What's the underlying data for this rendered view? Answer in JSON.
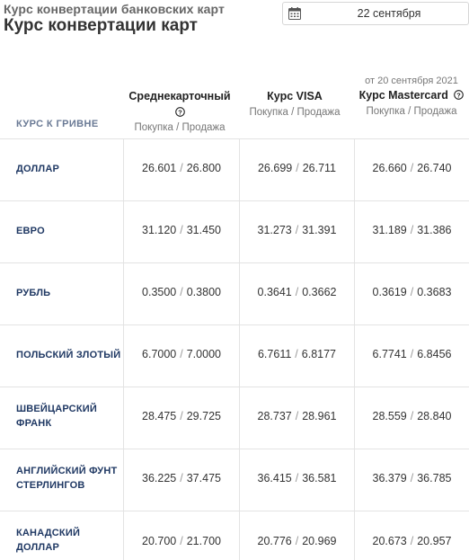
{
  "header": {
    "top_title": "Курс конвертации банковских карт",
    "main_title": "Курс конвертации карт",
    "date": "22 сентября"
  },
  "table": {
    "row_label_header": "КУРС К ГРИВНЕ",
    "as_of": "от 20 сентября 2021",
    "columns": [
      {
        "name": "Среднекарточный",
        "sub": "Покупка / Продажа"
      },
      {
        "name": "Курс VISA",
        "sub": "Покупка / Продажа"
      },
      {
        "name": "Курс Mastercard",
        "sub": "Покупка / Продажа"
      }
    ],
    "rows": [
      {
        "l1": "ДОЛЛАР",
        "l2": "",
        "c": [
          [
            "26.601",
            "26.800"
          ],
          [
            "26.699",
            "26.711"
          ],
          [
            "26.660",
            "26.740"
          ]
        ]
      },
      {
        "l1": "ЕВРО",
        "l2": "",
        "c": [
          [
            "31.120",
            "31.450"
          ],
          [
            "31.273",
            "31.391"
          ],
          [
            "31.189",
            "31.386"
          ]
        ]
      },
      {
        "l1": "РУБЛЬ",
        "l2": "",
        "c": [
          [
            "0.3500",
            "0.3800"
          ],
          [
            "0.3641",
            "0.3662"
          ],
          [
            "0.3619",
            "0.3683"
          ]
        ]
      },
      {
        "l1": "ПОЛЬСКИЙ ЗЛОТЫЙ",
        "l2": "",
        "c": [
          [
            "6.7000",
            "7.0000"
          ],
          [
            "6.7611",
            "6.8177"
          ],
          [
            "6.7741",
            "6.8456"
          ]
        ]
      },
      {
        "l1": "ШВЕЙЦАРСКИЙ",
        "l2": "ФРАНК",
        "c": [
          [
            "28.475",
            "29.725"
          ],
          [
            "28.737",
            "28.961"
          ],
          [
            "28.559",
            "28.840"
          ]
        ]
      },
      {
        "l1": "АНГЛИЙСКИЙ ФУНТ",
        "l2": "СТЕРЛИНГОВ",
        "c": [
          [
            "36.225",
            "37.475"
          ],
          [
            "36.415",
            "36.581"
          ],
          [
            "36.379",
            "36.785"
          ]
        ]
      },
      {
        "l1": "КАНАДСКИЙ",
        "l2": "ДОЛЛАР",
        "c": [
          [
            "20.700",
            "21.700"
          ],
          [
            "20.776",
            "20.969"
          ],
          [
            "20.673",
            "20.957"
          ]
        ]
      }
    ]
  }
}
